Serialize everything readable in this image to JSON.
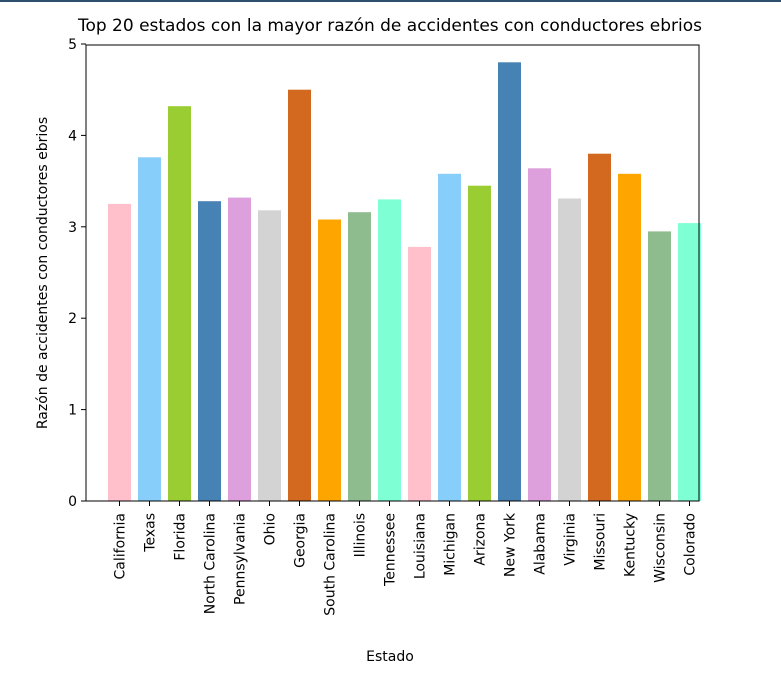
{
  "chart_data": {
    "type": "bar",
    "title": "Top 20 estados con la mayor razón de accidentes con conductores ebrios",
    "xlabel": "Estado",
    "ylabel": "Razón de accidentes con conductores ebrios",
    "ylim": [
      0,
      5
    ],
    "yticks": [
      "0",
      "1",
      "2",
      "3",
      "4",
      "5"
    ],
    "grid": false,
    "categories": [
      "California",
      "Texas",
      "Florida",
      "North Carolina",
      "Pennsylvania",
      "Ohio",
      "Georgia",
      "South Carolina",
      "Illinois",
      "Tennessee",
      "Louisiana",
      "Michigan",
      "Arizona",
      "New York",
      "Alabama",
      "Virginia",
      "Missouri",
      "Kentucky",
      "Wisconsin",
      "Colorado"
    ],
    "values": [
      3.25,
      3.76,
      4.32,
      3.28,
      3.32,
      3.18,
      4.5,
      3.08,
      3.16,
      3.3,
      2.78,
      3.58,
      3.45,
      4.8,
      3.64,
      3.31,
      3.8,
      3.58,
      2.95,
      3.04
    ],
    "colors": [
      "#ffc0cb",
      "#87cefa",
      "#9acd32",
      "#4682b4",
      "#dda0dd",
      "#d3d3d3",
      "#d2691e",
      "#ffa500",
      "#8fbc8f",
      "#7fffd4",
      "#ffc0cb",
      "#87cefa",
      "#9acd32",
      "#4682b4",
      "#dda0dd",
      "#d3d3d3",
      "#d2691e",
      "#ffa500",
      "#8fbc8f",
      "#7fffd4"
    ]
  }
}
